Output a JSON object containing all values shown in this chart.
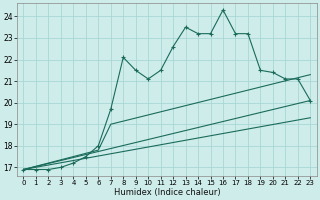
{
  "background_color": "#ceecea",
  "grid_color": "#a8d8d4",
  "line_color": "#1a6b5a",
  "xlabel": "Humidex (Indice chaleur)",
  "xlim": [
    -0.5,
    23.5
  ],
  "ylim": [
    16.6,
    24.6
  ],
  "xticks": [
    0,
    1,
    2,
    3,
    4,
    5,
    6,
    7,
    8,
    9,
    10,
    11,
    12,
    13,
    14,
    15,
    16,
    17,
    18,
    19,
    20,
    21,
    22,
    23
  ],
  "yticks": [
    17,
    18,
    19,
    20,
    21,
    22,
    23,
    24
  ],
  "series1_x": [
    0,
    1,
    2,
    3,
    4,
    5,
    6,
    7,
    8,
    9,
    10,
    11,
    12,
    13,
    14,
    15,
    16,
    17,
    18,
    19,
    20,
    21,
    22,
    23
  ],
  "series1_y": [
    16.9,
    16.9,
    16.9,
    17.0,
    17.2,
    17.5,
    18.0,
    19.7,
    22.1,
    21.5,
    21.1,
    21.5,
    22.6,
    23.5,
    23.2,
    23.2,
    24.3,
    23.2,
    23.2,
    21.5,
    21.4,
    21.1,
    21.1,
    20.1
  ],
  "series2_x": [
    0,
    23
  ],
  "series2_y": [
    16.9,
    20.1
  ],
  "series3_x": [
    0,
    23
  ],
  "series3_y": [
    16.9,
    19.3
  ],
  "series4_x": [
    0,
    6,
    7,
    23
  ],
  "series4_y": [
    16.9,
    17.8,
    19.0,
    21.3
  ]
}
